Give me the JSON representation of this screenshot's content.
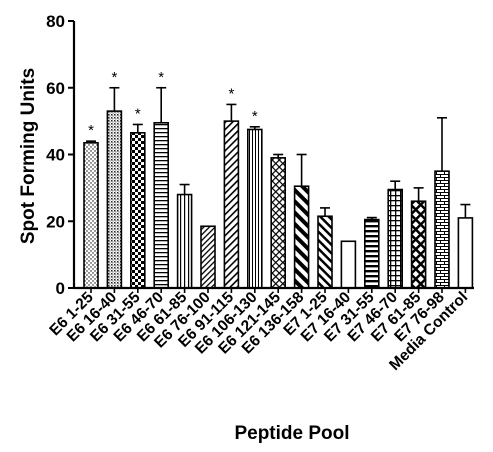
{
  "chart_data": {
    "type": "bar",
    "xlabel": "Peptide Pool",
    "ylabel": "Spot Forming Units",
    "ylim": [
      0,
      80
    ],
    "yticks": [
      0,
      20,
      40,
      60,
      80
    ],
    "grid": false,
    "categories": [
      "E6 1-25",
      "E6 16-40",
      "E6 31-55",
      "E6 46-70",
      "E6 61-85",
      "E6 76-100",
      "E6 91-115",
      "E6 106-130",
      "E6 121-145",
      "E6 136-158",
      "E7 1-25",
      "E7 16-40",
      "E7 31-55",
      "E7 46-70",
      "E7 61-85",
      "E7 76-98",
      "Media Control"
    ],
    "values": [
      43.5,
      53,
      46.5,
      49.5,
      28,
      18.5,
      50,
      47.5,
      39,
      30.5,
      21.5,
      14,
      20.5,
      29.5,
      26,
      35,
      21
    ],
    "errors": [
      0.5,
      7,
      2.5,
      10.5,
      3,
      0.3,
      5,
      0.8,
      1,
      9.5,
      2.5,
      0.2,
      0.6,
      2.5,
      4,
      16,
      4
    ],
    "significance": [
      "*",
      "*",
      "*",
      "*",
      "",
      "",
      "*",
      "*",
      "",
      "",
      "",
      "",
      "",
      "",
      "",
      "",
      ""
    ],
    "patterns": [
      "dots",
      "dense-dots",
      "checker",
      "hlines",
      "vlines",
      "diag-fine",
      "diag-right",
      "vlines-dense",
      "crosshatch",
      "diag-thick",
      "diag-left",
      "grey-fill",
      "hlines-thick",
      "grid",
      "diag-cross",
      "brick",
      "white"
    ]
  }
}
